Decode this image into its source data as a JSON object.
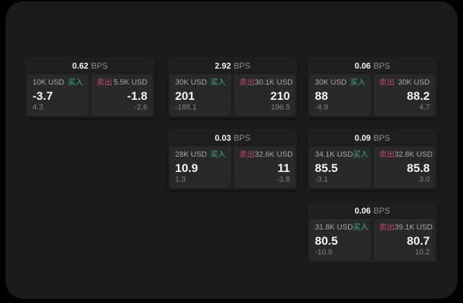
{
  "colors": {
    "page_bg": "#000000",
    "panel_bg": "#1b1b1c",
    "card_bg": "#1f1f1f",
    "tile_bg": "#292929",
    "text_primary": "#f5f5f5",
    "text_secondary": "#a8a8a8",
    "text_dim": "#828282",
    "buy_green": "#3cb576",
    "sell_rose": "#c04a68"
  },
  "labels": {
    "bps_unit": "BPS",
    "buy": "买入",
    "sell": "卖出"
  },
  "cards": [
    {
      "bps": "0.62",
      "grid": {
        "col": 0,
        "row": 0
      },
      "buy": {
        "amount": "10K USD",
        "price": "-3.7",
        "delta": "4.3"
      },
      "sell": {
        "amount": "5.5K USD",
        "price": "-1.8",
        "delta": "-2.6"
      }
    },
    {
      "bps": "2.92",
      "grid": {
        "col": 1,
        "row": 0
      },
      "buy": {
        "amount": "30K USD",
        "price": "201",
        "delta": "-188.1"
      },
      "sell": {
        "amount": "30.1K USD",
        "price": "210",
        "delta": "196.5"
      }
    },
    {
      "bps": "0.06",
      "grid": {
        "col": 2,
        "row": 0
      },
      "buy": {
        "amount": "30K USD",
        "price": "88",
        "delta": "-4.9"
      },
      "sell": {
        "amount": "30K USD",
        "price": "88.2",
        "delta": "4.7"
      }
    },
    {
      "bps": "0.03",
      "grid": {
        "col": 1,
        "row": 1
      },
      "buy": {
        "amount": "28K USD",
        "price": "10.9",
        "delta": "1.3"
      },
      "sell": {
        "amount": "32.6K USD",
        "price": "11",
        "delta": "-1.8"
      }
    },
    {
      "bps": "0.09",
      "grid": {
        "col": 2,
        "row": 1
      },
      "buy": {
        "amount": "34.1K USD",
        "price": "85.5",
        "delta": "-3.1"
      },
      "sell": {
        "amount": "32.8K USD",
        "price": "85.8",
        "delta": "3.0"
      }
    },
    {
      "bps": "0.06",
      "grid": {
        "col": 2,
        "row": 2
      },
      "buy": {
        "amount": "31.8K USD",
        "price": "80.5",
        "delta": "-10.8"
      },
      "sell": {
        "amount": "39.1K USD",
        "price": "80.7",
        "delta": "10.2"
      }
    }
  ]
}
